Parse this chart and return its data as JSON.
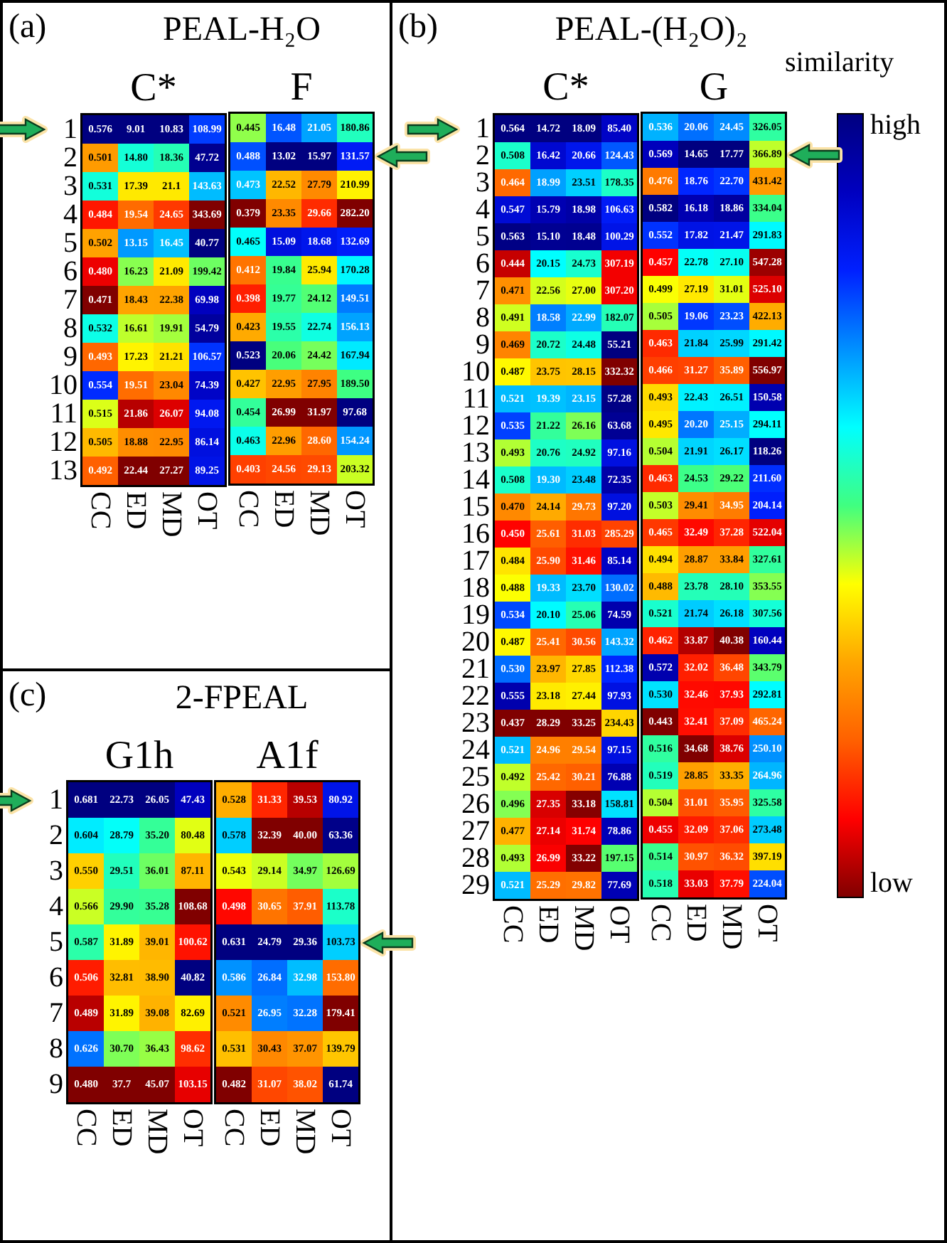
{
  "chart_data": [
    {
      "type": "heatmap",
      "title": "C*",
      "annotations": [
        "(a)",
        "PEAL-H₂O"
      ],
      "categories": [
        "CC",
        "ED",
        "MD",
        "OT"
      ],
      "y_categories": [
        "1",
        "2",
        "3",
        "4",
        "5",
        "6",
        "7",
        "8",
        "9",
        "10",
        "11",
        "12",
        "13"
      ],
      "cells": [
        [
          0.576,
          9.01,
          10.83,
          108.99
        ],
        [
          0.501,
          14.8,
          18.36,
          47.72
        ],
        [
          0.531,
          17.39,
          21.1,
          143.63
        ],
        [
          0.484,
          19.54,
          24.65,
          343.69
        ],
        [
          0.502,
          13.15,
          16.45,
          40.77
        ],
        [
          0.48,
          16.23,
          21.09,
          199.42
        ],
        [
          0.471,
          18.43,
          22.38,
          69.98
        ],
        [
          0.532,
          16.61,
          19.91,
          54.79
        ],
        [
          0.493,
          17.23,
          21.21,
          106.57
        ],
        [
          0.554,
          19.51,
          23.04,
          74.39
        ],
        [
          0.515,
          21.86,
          26.07,
          94.08
        ],
        [
          0.505,
          18.88,
          22.95,
          86.14
        ],
        [
          0.492,
          22.44,
          27.27,
          89.25
        ]
      ],
      "cell_labels": [
        [
          "0.576",
          "9.01",
          "10.83",
          "108.99"
        ],
        [
          "0.501",
          "14.80",
          "18.36",
          "47.72"
        ],
        [
          "0.531",
          "17.39",
          "21.1",
          "143.63"
        ],
        [
          "0.484",
          "19.54",
          "24.65",
          "343.69"
        ],
        [
          "0.502",
          "13.15",
          "16.45",
          "40.77"
        ],
        [
          "0.480",
          "16.23",
          "21.09",
          "199.42"
        ],
        [
          "0.471",
          "18.43",
          "22.38",
          "69.98"
        ],
        [
          "0.532",
          "16.61",
          "19.91",
          "54.79"
        ],
        [
          "0.493",
          "17.23",
          "21.21",
          "106.57"
        ],
        [
          "0.554",
          "19.51",
          "23.04",
          "74.39"
        ],
        [
          "0.515",
          "21.86",
          "26.07",
          "94.08"
        ],
        [
          "0.505",
          "18.88",
          "22.95",
          "86.14"
        ],
        [
          "0.492",
          "22.44",
          "27.27",
          "89.25"
        ]
      ]
    },
    {
      "type": "heatmap",
      "title": "F",
      "tick_labels": "x",
      "categories": [
        "CC",
        "ED",
        "MD",
        "OT"
      ],
      "y_categories": [
        "1",
        "2",
        "3",
        "4",
        "5",
        "6",
        "7",
        "8",
        "9",
        "10",
        "11",
        "12",
        "13"
      ],
      "cells": [
        [
          0.445,
          16.48,
          21.05,
          180.86
        ],
        [
          0.488,
          13.02,
          15.97,
          131.57
        ],
        [
          0.473,
          22.52,
          27.79,
          210.99
        ],
        [
          0.379,
          23.35,
          29.66,
          282.2
        ],
        [
          0.465,
          15.09,
          18.68,
          132.69
        ],
        [
          0.412,
          19.84,
          25.94,
          170.28
        ],
        [
          0.398,
          19.77,
          24.12,
          149.51
        ],
        [
          0.423,
          19.55,
          22.74,
          156.13
        ],
        [
          0.523,
          20.06,
          24.42,
          167.94
        ],
        [
          0.427,
          22.95,
          27.95,
          189.5
        ],
        [
          0.454,
          26.99,
          31.97,
          97.68
        ],
        [
          0.463,
          22.96,
          28.6,
          154.24
        ],
        [
          0.403,
          24.56,
          29.13,
          203.32
        ]
      ],
      "cell_labels": [
        [
          "0.445",
          "16.48",
          "21.05",
          "180.86"
        ],
        [
          "0.488",
          "13.02",
          "15.97",
          "131.57"
        ],
        [
          "0.473",
          "22.52",
          "27.79",
          "210.99"
        ],
        [
          "0.379",
          "23.35",
          "29.66",
          "282.20"
        ],
        [
          "0.465",
          "15.09",
          "18.68",
          "132.69"
        ],
        [
          "0.412",
          "19.84",
          "25.94",
          "170.28"
        ],
        [
          "0.398",
          "19.77",
          "24.12",
          "149.51"
        ],
        [
          "0.423",
          "19.55",
          "22.74",
          "156.13"
        ],
        [
          "0.523",
          "20.06",
          "24.42",
          "167.94"
        ],
        [
          "0.427",
          "22.95",
          "27.95",
          "189.50"
        ],
        [
          "0.454",
          "26.99",
          "31.97",
          "97.68"
        ],
        [
          "0.463",
          "22.96",
          "28.60",
          "154.24"
        ],
        [
          "0.403",
          "24.56",
          "29.13",
          "203.32"
        ]
      ]
    },
    {
      "type": "heatmap",
      "title": "C*",
      "annotations": [
        "(b)",
        "PEAL-(H₂O)₂"
      ],
      "categories": [
        "CC",
        "ED",
        "MD",
        "OT"
      ],
      "y_categories": [
        "1",
        "2",
        "3",
        "4",
        "5",
        "6",
        "7",
        "8",
        "9",
        "10",
        "11",
        "12",
        "13",
        "14",
        "15",
        "16",
        "17",
        "18",
        "19",
        "20",
        "21",
        "22",
        "23",
        "24",
        "25",
        "26",
        "27",
        "28",
        "29"
      ],
      "cells": [
        [
          0.564,
          14.72,
          18.09,
          85.4
        ],
        [
          0.508,
          16.42,
          20.66,
          124.43
        ],
        [
          0.464,
          18.99,
          23.51,
          178.35
        ],
        [
          0.547,
          15.79,
          18.98,
          106.63
        ],
        [
          0.563,
          15.1,
          18.48,
          100.29
        ],
        [
          0.444,
          20.15,
          24.73,
          307.19
        ],
        [
          0.471,
          22.56,
          27.0,
          307.2
        ],
        [
          0.491,
          18.58,
          22.99,
          182.07
        ],
        [
          0.469,
          20.72,
          24.48,
          55.21
        ],
        [
          0.487,
          23.75,
          28.15,
          332.32
        ],
        [
          0.521,
          19.39,
          23.15,
          57.28
        ],
        [
          0.535,
          21.22,
          26.16,
          63.68
        ],
        [
          0.493,
          20.76,
          24.92,
          97.16
        ],
        [
          0.508,
          19.3,
          23.48,
          72.35
        ],
        [
          0.47,
          24.14,
          29.73,
          97.2
        ],
        [
          0.45,
          25.61,
          31.03,
          285.29
        ],
        [
          0.484,
          25.9,
          31.46,
          85.14
        ],
        [
          0.488,
          19.33,
          23.7,
          130.02
        ],
        [
          0.534,
          20.1,
          25.06,
          74.59
        ],
        [
          0.487,
          25.41,
          30.56,
          143.32
        ],
        [
          0.53,
          23.97,
          27.85,
          112.38
        ],
        [
          0.555,
          23.18,
          27.44,
          97.93
        ],
        [
          0.437,
          28.29,
          33.25,
          234.43
        ],
        [
          0.521,
          24.96,
          29.54,
          97.15
        ],
        [
          0.492,
          25.42,
          30.21,
          76.88
        ],
        [
          0.496,
          27.35,
          33.18,
          158.81
        ],
        [
          0.477,
          27.14,
          31.74,
          78.86
        ],
        [
          0.493,
          26.99,
          33.22,
          197.15
        ],
        [
          0.521,
          25.29,
          29.82,
          77.69
        ]
      ],
      "cell_labels": [
        [
          "0.564",
          "14.72",
          "18.09",
          "85.40"
        ],
        [
          "0.508",
          "16.42",
          "20.66",
          "124.43"
        ],
        [
          "0.464",
          "18.99",
          "23.51",
          "178.35"
        ],
        [
          "0.547",
          "15.79",
          "18.98",
          "106.63"
        ],
        [
          "0.563",
          "15.10",
          "18.48",
          "100.29"
        ],
        [
          "0.444",
          "20.15",
          "24.73",
          "307.19"
        ],
        [
          "0.471",
          "22.56",
          "27.00",
          "307.20"
        ],
        [
          "0.491",
          "18.58",
          "22.99",
          "182.07"
        ],
        [
          "0.469",
          "20.72",
          "24.48",
          "55.21"
        ],
        [
          "0.487",
          "23.75",
          "28.15",
          "332.32"
        ],
        [
          "0.521",
          "19.39",
          "23.15",
          "57.28"
        ],
        [
          "0.535",
          "21.22",
          "26.16",
          "63.68"
        ],
        [
          "0.493",
          "20.76",
          "24.92",
          "97.16"
        ],
        [
          "0.508",
          "19.30",
          "23.48",
          "72.35"
        ],
        [
          "0.470",
          "24.14",
          "29.73",
          "97.20"
        ],
        [
          "0.450",
          "25.61",
          "31.03",
          "285.29"
        ],
        [
          "0.484",
          "25.90",
          "31.46",
          "85.14"
        ],
        [
          "0.488",
          "19.33",
          "23.70",
          "130.02"
        ],
        [
          "0.534",
          "20.10",
          "25.06",
          "74.59"
        ],
        [
          "0.487",
          "25.41",
          "30.56",
          "143.32"
        ],
        [
          "0.530",
          "23.97",
          "27.85",
          "112.38"
        ],
        [
          "0.555",
          "23.18",
          "27.44",
          "97.93"
        ],
        [
          "0.437",
          "28.29",
          "33.25",
          "234.43"
        ],
        [
          "0.521",
          "24.96",
          "29.54",
          "97.15"
        ],
        [
          "0.492",
          "25.42",
          "30.21",
          "76.88"
        ],
        [
          "0.496",
          "27.35",
          "33.18",
          "158.81"
        ],
        [
          "0.477",
          "27.14",
          "31.74",
          "78.86"
        ],
        [
          "0.493",
          "26.99",
          "33.22",
          "197.15"
        ],
        [
          "0.521",
          "25.29",
          "29.82",
          "77.69"
        ]
      ]
    },
    {
      "type": "heatmap",
      "title": "G",
      "tick_labels": "x",
      "annotations": [
        "similarity",
        "high",
        "low"
      ],
      "categories": [
        "CC",
        "ED",
        "MD",
        "OT"
      ],
      "y_categories": [
        "1",
        "2",
        "3",
        "4",
        "5",
        "6",
        "7",
        "8",
        "9",
        "10",
        "11",
        "12",
        "13",
        "14",
        "15",
        "16",
        "17",
        "18",
        "19",
        "20",
        "21",
        "22",
        "23",
        "24",
        "25",
        "26",
        "27",
        "28",
        "29"
      ],
      "cells": [
        [
          0.536,
          20.06,
          24.45,
          326.05
        ],
        [
          0.569,
          14.65,
          17.77,
          366.89
        ],
        [
          0.476,
          18.76,
          22.7,
          431.42
        ],
        [
          0.582,
          16.18,
          18.86,
          334.04
        ],
        [
          0.552,
          17.82,
          21.47,
          291.83
        ],
        [
          0.457,
          22.78,
          27.1,
          547.28
        ],
        [
          0.499,
          27.19,
          31.01,
          525.1
        ],
        [
          0.505,
          19.06,
          23.23,
          422.13
        ],
        [
          0.463,
          21.84,
          25.99,
          291.42
        ],
        [
          0.466,
          31.27,
          35.89,
          556.97
        ],
        [
          0.493,
          22.43,
          26.51,
          150.58
        ],
        [
          0.495,
          20.2,
          25.15,
          294.11
        ],
        [
          0.504,
          21.91,
          26.17,
          118.26
        ],
        [
          0.463,
          24.53,
          29.22,
          211.6
        ],
        [
          0.503,
          29.41,
          34.95,
          204.14
        ],
        [
          0.465,
          32.49,
          37.28,
          522.04
        ],
        [
          0.494,
          28.87,
          33.84,
          327.61
        ],
        [
          0.488,
          23.78,
          28.1,
          353.55
        ],
        [
          0.521,
          21.74,
          26.18,
          307.56
        ],
        [
          0.462,
          33.87,
          40.38,
          160.44
        ],
        [
          0.572,
          32.02,
          36.48,
          343.79
        ],
        [
          0.53,
          32.46,
          37.93,
          292.81
        ],
        [
          0.443,
          32.41,
          37.09,
          465.24
        ],
        [
          0.516,
          34.68,
          38.76,
          250.1
        ],
        [
          0.519,
          28.85,
          33.35,
          264.96
        ],
        [
          0.504,
          31.01,
          35.95,
          325.58
        ],
        [
          0.455,
          32.09,
          37.06,
          273.48
        ],
        [
          0.514,
          30.97,
          36.32,
          397.19
        ],
        [
          0.518,
          33.03,
          37.79,
          224.04
        ]
      ],
      "cell_labels": [
        [
          "0.536",
          "20.06",
          "24.45",
          "326.05"
        ],
        [
          "0.569",
          "14.65",
          "17.77",
          "366.89"
        ],
        [
          "0.476",
          "18.76",
          "22.70",
          "431.42"
        ],
        [
          "0.582",
          "16.18",
          "18.86",
          "334.04"
        ],
        [
          "0.552",
          "17.82",
          "21.47",
          "291.83"
        ],
        [
          "0.457",
          "22.78",
          "27.10",
          "547.28"
        ],
        [
          "0.499",
          "27.19",
          "31.01",
          "525.10"
        ],
        [
          "0.505",
          "19.06",
          "23.23",
          "422.13"
        ],
        [
          "0.463",
          "21.84",
          "25.99",
          "291.42"
        ],
        [
          "0.466",
          "31.27",
          "35.89",
          "556.97"
        ],
        [
          "0.493",
          "22.43",
          "26.51",
          "150.58"
        ],
        [
          "0.495",
          "20.20",
          "25.15",
          "294.11"
        ],
        [
          "0.504",
          "21.91",
          "26.17",
          "118.26"
        ],
        [
          "0.463",
          "24.53",
          "29.22",
          "211.60"
        ],
        [
          "0.503",
          "29.41",
          "34.95",
          "204.14"
        ],
        [
          "0.465",
          "32.49",
          "37.28",
          "522.04"
        ],
        [
          "0.494",
          "28.87",
          "33.84",
          "327.61"
        ],
        [
          "0.488",
          "23.78",
          "28.10",
          "353.55"
        ],
        [
          "0.521",
          "21.74",
          "26.18",
          "307.56"
        ],
        [
          "0.462",
          "33.87",
          "40.38",
          "160.44"
        ],
        [
          "0.572",
          "32.02",
          "36.48",
          "343.79"
        ],
        [
          "0.530",
          "32.46",
          "37.93",
          "292.81"
        ],
        [
          "0.443",
          "32.41",
          "37.09",
          "465.24"
        ],
        [
          "0.516",
          "34.68",
          "38.76",
          "250.10"
        ],
        [
          "0.519",
          "28.85",
          "33.35",
          "264.96"
        ],
        [
          "0.504",
          "31.01",
          "35.95",
          "325.58"
        ],
        [
          "0.455",
          "32.09",
          "37.06",
          "273.48"
        ],
        [
          "0.514",
          "30.97",
          "36.32",
          "397.19"
        ],
        [
          "0.518",
          "33.03",
          "37.79",
          "224.04"
        ]
      ]
    },
    {
      "type": "heatmap",
      "title": "G1h",
      "annotations": [
        "(c)",
        "2-FPEAL"
      ],
      "categories": [
        "CC",
        "ED",
        "MD",
        "OT"
      ],
      "y_categories": [
        "1",
        "2",
        "3",
        "4",
        "5",
        "6",
        "7",
        "8",
        "9"
      ],
      "cells": [
        [
          0.681,
          22.73,
          26.05,
          47.43
        ],
        [
          0.604,
          28.79,
          35.2,
          80.48
        ],
        [
          0.55,
          29.51,
          36.01,
          87.11
        ],
        [
          0.566,
          29.9,
          35.28,
          108.68
        ],
        [
          0.587,
          31.89,
          39.01,
          100.62
        ],
        [
          0.506,
          32.81,
          38.9,
          40.82
        ],
        [
          0.489,
          31.89,
          39.08,
          82.69
        ],
        [
          0.626,
          30.7,
          36.43,
          98.62
        ],
        [
          0.48,
          37.7,
          45.07,
          103.15
        ]
      ],
      "cell_labels": [
        [
          "0.681",
          "22.73",
          "26.05",
          "47.43"
        ],
        [
          "0.604",
          "28.79",
          "35.20",
          "80.48"
        ],
        [
          "0.550",
          "29.51",
          "36.01",
          "87.11"
        ],
        [
          "0.566",
          "29.90",
          "35.28",
          "108.68"
        ],
        [
          "0.587",
          "31.89",
          "39.01",
          "100.62"
        ],
        [
          "0.506",
          "32.81",
          "38.90",
          "40.82"
        ],
        [
          "0.489",
          "31.89",
          "39.08",
          "82.69"
        ],
        [
          "0.626",
          "30.70",
          "36.43",
          "98.62"
        ],
        [
          "0.480",
          "37.7",
          "45.07",
          "103.15"
        ]
      ]
    },
    {
      "type": "heatmap",
      "title": "A1f",
      "tick_labels": "x",
      "categories": [
        "CC",
        "ED",
        "MD",
        "OT"
      ],
      "y_categories": [
        "1",
        "2",
        "3",
        "4",
        "5",
        "6",
        "7",
        "8",
        "9"
      ],
      "cells": [
        [
          0.528,
          31.33,
          39.53,
          80.92
        ],
        [
          0.578,
          32.39,
          40.0,
          63.36
        ],
        [
          0.543,
          29.14,
          34.97,
          126.69
        ],
        [
          0.498,
          30.65,
          37.91,
          113.78
        ],
        [
          0.631,
          24.79,
          29.36,
          103.73
        ],
        [
          0.586,
          26.84,
          32.98,
          153.8
        ],
        [
          0.521,
          26.95,
          32.28,
          179.41
        ],
        [
          0.531,
          30.43,
          37.07,
          139.79
        ],
        [
          0.482,
          31.07,
          38.02,
          61.74
        ]
      ],
      "cell_labels": [
        [
          "0.528",
          "31.33",
          "39.53",
          "80.92"
        ],
        [
          "0.578",
          "32.39",
          "40.00",
          "63.36"
        ],
        [
          "0.543",
          "29.14",
          "34.97",
          "126.69"
        ],
        [
          "0.498",
          "30.65",
          "37.91",
          "113.78"
        ],
        [
          "0.631",
          "24.79",
          "29.36",
          "103.73"
        ],
        [
          "0.586",
          "26.84",
          "32.98",
          "153.80"
        ],
        [
          "0.521",
          "26.95",
          "32.28",
          "179.41"
        ],
        [
          "0.531",
          "30.43",
          "37.07",
          "139.79"
        ],
        [
          "0.482",
          "31.07",
          "38.02",
          "61.74"
        ]
      ]
    }
  ]
}
